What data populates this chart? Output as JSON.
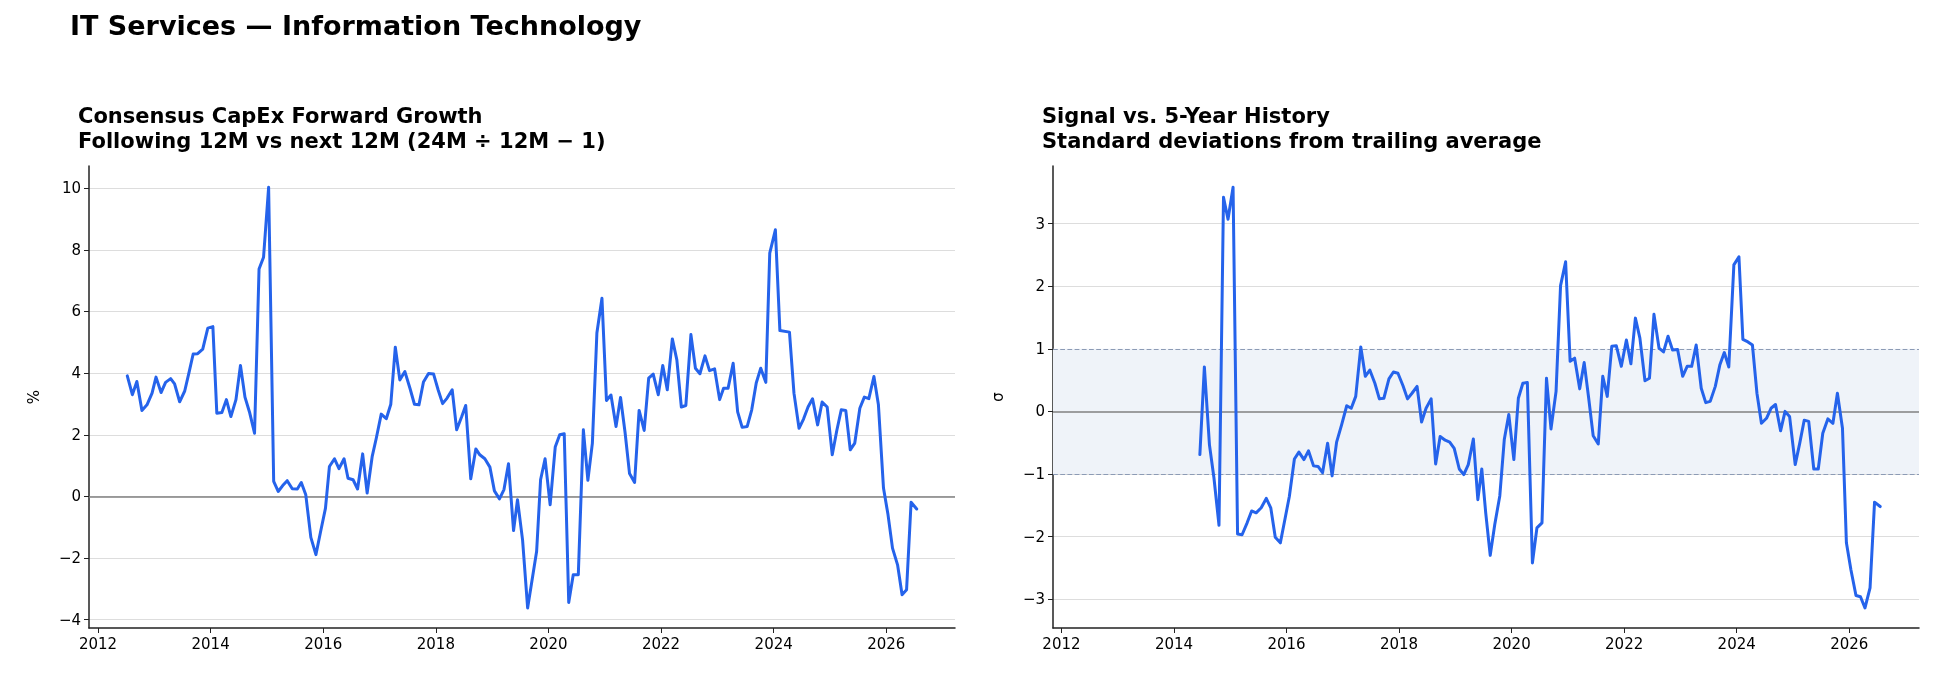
{
  "chart_data": [
    {
      "type": "line",
      "title": "Consensus CapEx Forward Growth",
      "subtitle": "Following 12M vs next 12M (24M ÷ 12M − 1)",
      "ylabel": "%",
      "annotations": [
        "IT Services — Information Technology"
      ],
      "color": "#2563eb",
      "marker": "none",
      "line_style": "solid",
      "grid": "y",
      "xlim": [
        2011.84,
        2027.22
      ],
      "xticks": [
        2012,
        2014,
        2016,
        2018,
        2020,
        2022,
        2024,
        2026
      ],
      "ylim": [
        -4.27,
        10.72
      ],
      "yticks": [
        -4,
        -2,
        0,
        2,
        4,
        6,
        8,
        10
      ],
      "ref_lines": [
        {
          "axis": "y",
          "value": 0,
          "color": "#808080"
        }
      ],
      "x": [
        2012.52,
        2012.61,
        2012.69,
        2012.78,
        2012.87,
        2012.96,
        2013.03,
        2013.12,
        2013.2,
        2013.29,
        2013.36,
        2013.45,
        2013.54,
        2013.62,
        2013.69,
        2013.77,
        2013.86,
        2013.95,
        2014.04,
        2014.11,
        2014.2,
        2014.28,
        2014.36,
        2014.45,
        2014.53,
        2014.61,
        2014.69,
        2014.78,
        2014.86,
        2014.94,
        2015.03,
        2015.12,
        2015.2,
        2015.28,
        2015.36,
        2015.45,
        2015.54,
        2015.61,
        2015.69,
        2015.78,
        2015.87,
        2015.95,
        2016.04,
        2016.11,
        2016.2,
        2016.28,
        2016.37,
        2016.44,
        2016.53,
        2016.61,
        2016.7,
        2016.78,
        2016.87,
        2016.94,
        2017.03,
        2017.12,
        2017.2,
        2017.28,
        2017.36,
        2017.45,
        2017.54,
        2017.62,
        2017.7,
        2017.78,
        2017.87,
        2017.96,
        2018.04,
        2018.12,
        2018.2,
        2018.29,
        2018.37,
        2018.46,
        2018.53,
        2018.62,
        2018.71,
        2018.78,
        2018.87,
        2018.96,
        2019.04,
        2019.13,
        2019.21,
        2019.29,
        2019.38,
        2019.45,
        2019.54,
        2019.63,
        2019.79,
        2019.86,
        2019.94,
        2020.03,
        2020.12,
        2020.2,
        2020.28,
        2020.36,
        2020.44,
        2020.53,
        2020.62,
        2020.7,
        2020.78,
        2020.86,
        2020.95,
        2021.03,
        2021.11,
        2021.2,
        2021.28,
        2021.36,
        2021.44,
        2021.53,
        2021.61,
        2021.7,
        2021.78,
        2021.86,
        2021.95,
        2022.03,
        2022.11,
        2022.2,
        2022.28,
        2022.36,
        2022.44,
        2022.53,
        2022.61,
        2022.69,
        2022.78,
        2022.86,
        2022.95,
        2023.04,
        2023.11,
        2023.19,
        2023.28,
        2023.36,
        2023.44,
        2023.53,
        2023.61,
        2023.69,
        2023.77,
        2023.86,
        2023.93,
        2024.03,
        2024.11,
        2024.28,
        2024.36,
        2024.45,
        2024.53,
        2024.61,
        2024.69,
        2024.78,
        2024.86,
        2024.95,
        2025.04,
        2025.12,
        2025.2,
        2025.28,
        2025.36,
        2025.44,
        2025.53,
        2025.61,
        2025.69,
        2025.78,
        2025.86,
        2025.95,
        2026.03,
        2026.11,
        2026.2,
        2026.28,
        2026.36,
        2026.44,
        2026.54
      ],
      "values": [
        3.91,
        3.3,
        3.73,
        2.79,
        2.97,
        3.35,
        3.87,
        3.37,
        3.7,
        3.82,
        3.65,
        3.07,
        3.42,
        4.05,
        4.62,
        4.63,
        4.78,
        5.46,
        5.51,
        2.7,
        2.72,
        3.14,
        2.59,
        3.14,
        4.25,
        3.22,
        2.74,
        2.05,
        7.38,
        7.76,
        10.03,
        0.49,
        0.16,
        0.35,
        0.51,
        0.25,
        0.24,
        0.45,
        0.05,
        -1.33,
        -1.89,
        -1.17,
        -0.38,
        0.97,
        1.22,
        0.9,
        1.22,
        0.59,
        0.54,
        0.24,
        1.38,
        0.11,
        1.3,
        1.87,
        2.67,
        2.52,
        2.99,
        4.84,
        3.78,
        4.05,
        3.51,
        2.99,
        2.97,
        3.71,
        3.99,
        3.97,
        3.46,
        3.01,
        3.19,
        3.46,
        2.16,
        2.59,
        2.95,
        0.57,
        1.54,
        1.35,
        1.22,
        0.95,
        0.18,
        -0.08,
        0.22,
        1.06,
        -1.11,
        -0.11,
        -1.41,
        -3.62,
        -1.78,
        0.54,
        1.22,
        -0.27,
        1.6,
        2.0,
        2.03,
        -3.44,
        -2.54,
        -2.54,
        2.16,
        0.52,
        1.73,
        5.3,
        6.43,
        3.11,
        3.29,
        2.27,
        3.21,
        2.08,
        0.74,
        0.45,
        2.79,
        2.14,
        3.84,
        3.97,
        3.3,
        4.25,
        3.46,
        5.11,
        4.43,
        2.9,
        2.95,
        5.25,
        4.16,
        3.98,
        4.56,
        4.08,
        4.14,
        3.14,
        3.51,
        3.51,
        4.32,
        2.74,
        2.24,
        2.27,
        2.81,
        3.68,
        4.16,
        3.7,
        7.89,
        8.65,
        5.38,
        5.33,
        3.35,
        2.21,
        2.51,
        2.9,
        3.17,
        2.32,
        3.06,
        2.9,
        1.35,
        2.13,
        2.81,
        2.79,
        1.51,
        1.73,
        2.86,
        3.22,
        3.17,
        3.89,
        2.97,
        0.27,
        -0.59,
        -1.68,
        -2.22,
        -3.19,
        -3.03,
        -0.19,
        -0.41
      ]
    },
    {
      "type": "line",
      "title": "Signal vs. 5-Year History",
      "subtitle": "Standard deviations from trailing average",
      "ylabel": "σ",
      "color": "#2563eb",
      "marker": "none",
      "line_style": "solid",
      "grid": "y",
      "xlim": [
        2011.85,
        2027.24
      ],
      "xticks": [
        2012,
        2014,
        2016,
        2018,
        2020,
        2022,
        2024,
        2026
      ],
      "ylim": [
        -3.46,
        3.92
      ],
      "yticks": [
        -3,
        -2,
        -1,
        0,
        1,
        2,
        3
      ],
      "ref_lines": [
        {
          "axis": "y",
          "value": 0,
          "color": "#808080"
        }
      ],
      "bands": [
        {
          "axis": "y",
          "from": -1,
          "to": 1,
          "color": "#eff3f9"
        }
      ],
      "x": [
        2014.46,
        2014.54,
        2014.63,
        2014.71,
        2014.8,
        2014.88,
        2014.96,
        2015.05,
        2015.13,
        2015.21,
        2015.3,
        2015.38,
        2015.46,
        2015.55,
        2015.64,
        2015.72,
        2015.8,
        2015.89,
        2015.97,
        2016.05,
        2016.14,
        2016.22,
        2016.31,
        2016.39,
        2016.48,
        2016.56,
        2016.64,
        2016.73,
        2016.81,
        2016.89,
        2016.98,
        2017.07,
        2017.15,
        2017.23,
        2017.32,
        2017.4,
        2017.48,
        2017.57,
        2017.65,
        2017.73,
        2017.82,
        2017.9,
        2017.98,
        2018.07,
        2018.15,
        2018.23,
        2018.32,
        2018.4,
        2018.48,
        2018.57,
        2018.65,
        2018.73,
        2018.82,
        2018.9,
        2018.98,
        2019.07,
        2019.15,
        2019.23,
        2019.32,
        2019.4,
        2019.47,
        2019.54,
        2019.62,
        2019.7,
        2019.79,
        2019.87,
        2019.95,
        2020.04,
        2020.12,
        2020.2,
        2020.28,
        2020.37,
        2020.45,
        2020.54,
        2020.62,
        2020.7,
        2020.79,
        2020.87,
        2020.96,
        2021.04,
        2021.12,
        2021.21,
        2021.29,
        2021.37,
        2021.45,
        2021.54,
        2021.62,
        2021.7,
        2021.78,
        2021.86,
        2021.95,
        2022.04,
        2022.12,
        2022.2,
        2022.28,
        2022.37,
        2022.45,
        2022.53,
        2022.62,
        2022.7,
        2022.78,
        2022.86,
        2022.95,
        2023.04,
        2023.12,
        2023.2,
        2023.28,
        2023.37,
        2023.45,
        2023.53,
        2023.62,
        2023.7,
        2023.78,
        2023.86,
        2023.95,
        2024.04,
        2024.11,
        2024.2,
        2024.28,
        2024.36,
        2024.44,
        2024.53,
        2024.61,
        2024.69,
        2024.78,
        2024.86,
        2024.94,
        2025.04,
        2025.12,
        2025.2,
        2025.28,
        2025.37,
        2025.45,
        2025.53,
        2025.62,
        2025.71,
        2025.79,
        2025.88,
        2025.95,
        2026.03,
        2026.12,
        2026.2,
        2026.28,
        2026.37,
        2026.45,
        2026.55
      ],
      "values": [
        -0.69,
        0.71,
        -0.53,
        -1.06,
        -1.82,
        3.42,
        3.07,
        3.58,
        -1.96,
        -1.97,
        -1.78,
        -1.59,
        -1.62,
        -1.54,
        -1.39,
        -1.54,
        -2.01,
        -2.1,
        -1.73,
        -1.36,
        -0.76,
        -0.65,
        -0.77,
        -0.63,
        -0.87,
        -0.88,
        -0.98,
        -0.51,
        -1.03,
        -0.49,
        -0.21,
        0.09,
        0.05,
        0.24,
        1.03,
        0.56,
        0.66,
        0.45,
        0.2,
        0.21,
        0.52,
        0.63,
        0.61,
        0.41,
        0.2,
        0.29,
        0.4,
        -0.17,
        0.05,
        0.2,
        -0.84,
        -0.4,
        -0.46,
        -0.49,
        -0.59,
        -0.92,
        -1.01,
        -0.85,
        -0.44,
        -1.41,
        -0.92,
        -1.62,
        -2.3,
        -1.81,
        -1.35,
        -0.45,
        -0.05,
        -0.77,
        0.21,
        0.45,
        0.46,
        -2.42,
        -1.86,
        -1.78,
        0.53,
        -0.28,
        0.32,
        2.01,
        2.39,
        0.8,
        0.85,
        0.36,
        0.78,
        0.21,
        -0.39,
        -0.52,
        0.56,
        0.24,
        1.04,
        1.05,
        0.72,
        1.14,
        0.76,
        1.49,
        1.17,
        0.49,
        0.53,
        1.55,
        1.01,
        0.95,
        1.2,
        0.98,
        0.99,
        0.56,
        0.72,
        0.72,
        1.06,
        0.37,
        0.14,
        0.16,
        0.4,
        0.74,
        0.94,
        0.71,
        2.34,
        2.47,
        1.15,
        1.11,
        1.06,
        0.29,
        -0.19,
        -0.11,
        0.05,
        0.11,
        -0.31,
        0.0,
        -0.08,
        -0.85,
        -0.51,
        -0.14,
        -0.16,
        -0.92,
        -0.92,
        -0.35,
        -0.12,
        -0.19,
        0.29,
        -0.27,
        -2.1,
        -2.53,
        -2.94,
        -2.96,
        -3.14,
        -2.82,
        -1.45,
        -1.52
      ]
    }
  ]
}
